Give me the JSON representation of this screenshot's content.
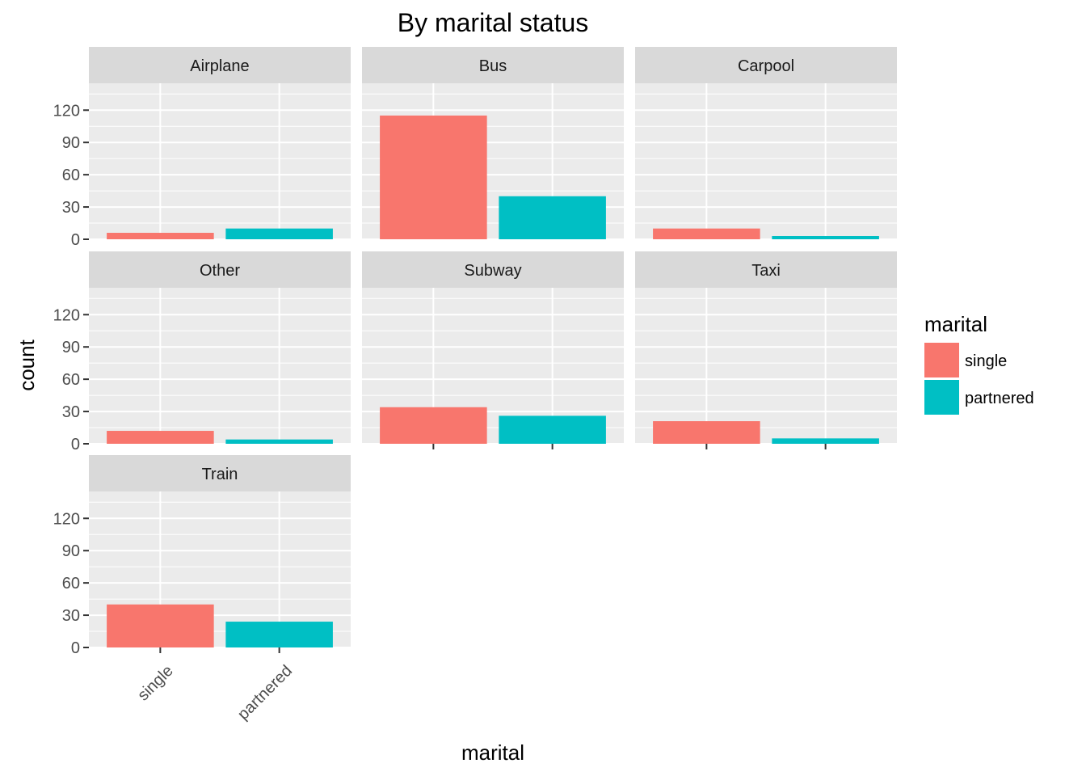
{
  "chart_data": {
    "type": "bar",
    "title": "By marital status",
    "xlabel": "marital",
    "ylabel": "count",
    "categories": [
      "single",
      "partnered"
    ],
    "ylim": [
      0,
      145
    ],
    "yticks": [
      0,
      30,
      60,
      90,
      120
    ],
    "grid": true,
    "facet_columns": 3,
    "legend": {
      "title": "marital",
      "position": "right",
      "entries": [
        {
          "label": "single",
          "color": "#F8766D"
        },
        {
          "label": "partnered",
          "color": "#00BFC4"
        }
      ]
    },
    "facets": [
      {
        "name": "Airplane",
        "values": [
          6,
          10
        ]
      },
      {
        "name": "Bus",
        "values": [
          115,
          40
        ]
      },
      {
        "name": "Carpool",
        "values": [
          10,
          3
        ]
      },
      {
        "name": "Other",
        "values": [
          12,
          4
        ]
      },
      {
        "name": "Subway",
        "values": [
          34,
          26
        ]
      },
      {
        "name": "Taxi",
        "values": [
          21,
          5
        ]
      },
      {
        "name": "Train",
        "values": [
          40,
          24
        ]
      }
    ]
  },
  "colors": {
    "panel_background": "#EBEBEB",
    "strip_background": "#D9D9D9",
    "grid_line": "#FFFFFF",
    "single": "#F8766D",
    "partnered": "#00BFC4"
  }
}
